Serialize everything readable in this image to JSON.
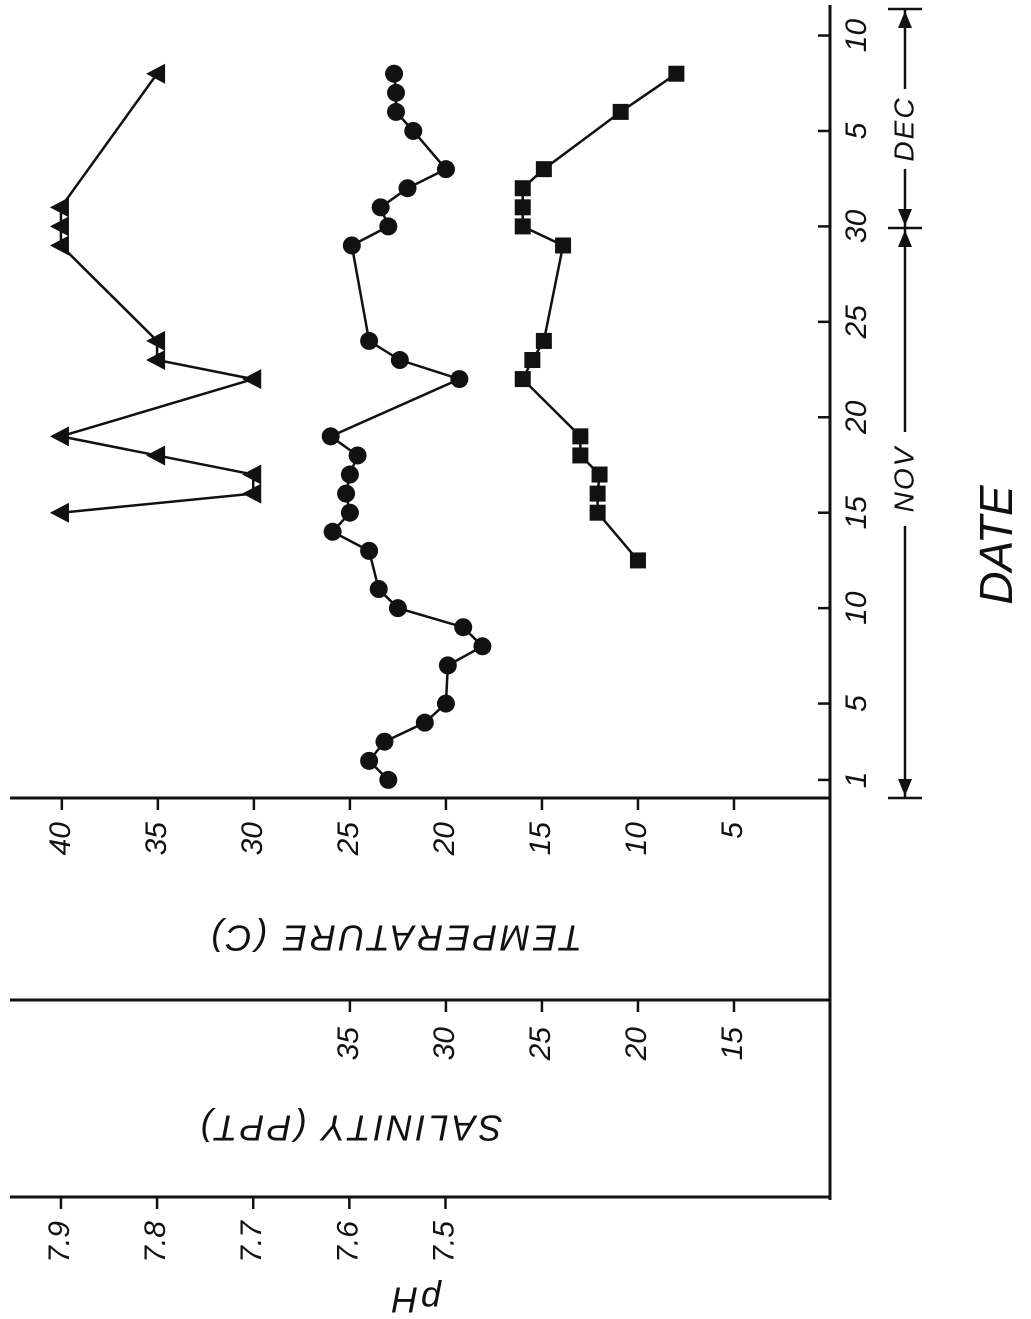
{
  "chart_data": {
    "type": "line",
    "x_label": "DATE",
    "y_label": "TEMPERATURE (C)",
    "y2_label": "SALINITY (PPT)",
    "y3_label": "pH",
    "annotations": [
      "NOV",
      "DEC"
    ],
    "xlim": [
      0,
      41.6
    ],
    "xticks": [
      1,
      5,
      10,
      15,
      20,
      25,
      30,
      {
        "value": 35,
        "label": "5"
      },
      {
        "value": 40,
        "label": "10"
      }
    ],
    "ylim": [
      0,
      42.7
    ],
    "yticks": [
      40,
      35,
      30,
      25,
      20,
      15,
      10,
      5
    ],
    "y2lim": [
      10,
      52.7
    ],
    "y2ticks": [
      35,
      30,
      25,
      20,
      15
    ],
    "y3lim": [
      7.1,
      7.953
    ],
    "y3ticks": [
      7.9,
      7.8,
      7.7,
      7.6,
      7.5
    ],
    "series": [
      {
        "axis": "y3",
        "marker": "triangle",
        "color": "#111111",
        "x": [
          15,
          16,
          17,
          18,
          19,
          22,
          23,
          24,
          29,
          30,
          31,
          38
        ],
        "values": [
          7.9,
          7.7,
          7.7,
          7.8,
          7.9,
          7.7,
          7.8,
          7.8,
          7.9,
          7.9,
          7.9,
          7.8
        ]
      },
      {
        "axis": "y2",
        "marker": "circle",
        "color": "#111111",
        "x": [
          1,
          2,
          3,
          4,
          5,
          7,
          8,
          9,
          10,
          11,
          13,
          14,
          15,
          16,
          17,
          18,
          19,
          22,
          23,
          24,
          29,
          30,
          31,
          32,
          33,
          35,
          36,
          37,
          38
        ],
        "values": [
          33.0,
          34.0,
          33.2,
          31.1,
          30.0,
          29.9,
          28.1,
          29.1,
          32.5,
          33.5,
          34.0,
          35.9,
          35.0,
          35.2,
          35.0,
          34.6,
          36.0,
          29.3,
          32.4,
          34.0,
          34.9,
          33.0,
          33.4,
          32.0,
          30.0,
          31.7,
          32.6,
          32.6,
          32.7
        ]
      },
      {
        "axis": "y",
        "marker": "square",
        "color": "#111111",
        "x": [
          12.5,
          15,
          16,
          17,
          18,
          19,
          22,
          23,
          24,
          29,
          30,
          31,
          32,
          33,
          36,
          38
        ],
        "values": [
          10.0,
          12.1,
          12.1,
          12.0,
          13.0,
          13.0,
          16.0,
          15.5,
          14.9,
          13.9,
          16.0,
          16.0,
          16.0,
          14.9,
          10.9,
          8.0
        ]
      }
    ]
  }
}
